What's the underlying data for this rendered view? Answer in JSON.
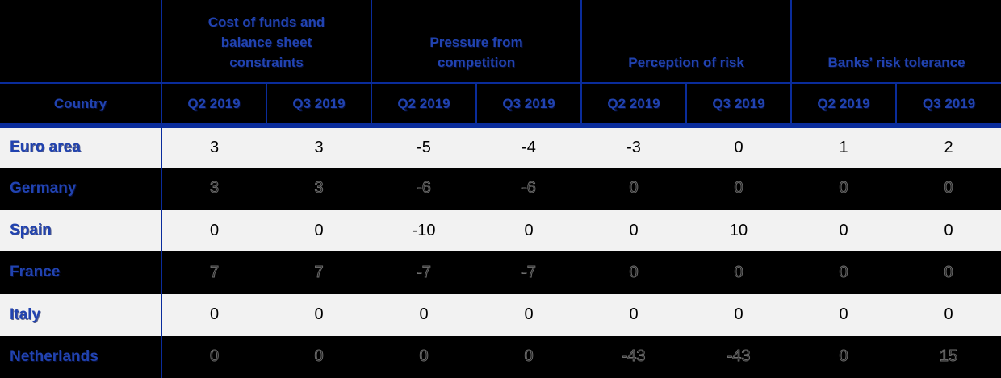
{
  "table": {
    "corner_label": "",
    "country_header": "Country",
    "groups": [
      {
        "label": "Cost of funds and balance sheet constraints"
      },
      {
        "label": "Pressure from competition"
      },
      {
        "label": "Perception of risk"
      },
      {
        "label": "Banks’ risk tolerance"
      }
    ],
    "quarter_headers": [
      "Q2 2019",
      "Q3 2019",
      "Q2 2019",
      "Q3 2019",
      "Q2 2019",
      "Q3 2019",
      "Q2 2019",
      "Q3 2019"
    ],
    "rows": [
      {
        "country": "Euro area",
        "theme": "light",
        "values": [
          3,
          3,
          -5,
          -4,
          -3,
          0,
          1,
          2
        ]
      },
      {
        "country": "Germany",
        "theme": "dark",
        "values": [
          3,
          3,
          -6,
          -6,
          0,
          0,
          0,
          0
        ]
      },
      {
        "country": "Spain",
        "theme": "light",
        "values": [
          0,
          0,
          -10,
          0,
          0,
          10,
          0,
          0
        ]
      },
      {
        "country": "France",
        "theme": "dark",
        "values": [
          7,
          7,
          -7,
          -7,
          0,
          0,
          0,
          0
        ]
      },
      {
        "country": "Italy",
        "theme": "light",
        "values": [
          0,
          0,
          0,
          0,
          0,
          0,
          0,
          0
        ]
      },
      {
        "country": "Netherlands",
        "theme": "dark",
        "values": [
          0,
          0,
          0,
          0,
          -43,
          -43,
          0,
          15
        ]
      }
    ],
    "colors": {
      "grid_line": "#0a2c9b",
      "header_text": "#2143b0",
      "light_row_bg": "#f2f2f2",
      "dark_row_bg": "#000000",
      "light_row_value_text": "#000000",
      "dark_row_value_text": "#161616"
    }
  },
  "chart_data": {
    "type": "table",
    "title": "",
    "column_groups": [
      {
        "label": "Cost of funds and balance sheet constraints",
        "span": 2
      },
      {
        "label": "Pressure from competition",
        "span": 2
      },
      {
        "label": "Perception of risk",
        "span": 2
      },
      {
        "label": "Banks’ risk tolerance",
        "span": 2
      }
    ],
    "columns": [
      "Country",
      "Q2 2019",
      "Q3 2019",
      "Q2 2019",
      "Q3 2019",
      "Q2 2019",
      "Q3 2019",
      "Q2 2019",
      "Q3 2019"
    ],
    "rows": [
      [
        "Euro area",
        3,
        3,
        -5,
        -4,
        -3,
        0,
        1,
        2
      ],
      [
        "Germany",
        3,
        3,
        -6,
        -6,
        0,
        0,
        0,
        0
      ],
      [
        "Spain",
        0,
        0,
        -10,
        0,
        0,
        10,
        0,
        0
      ],
      [
        "France",
        7,
        7,
        -7,
        -7,
        0,
        0,
        0,
        0
      ],
      [
        "Italy",
        0,
        0,
        0,
        0,
        0,
        0,
        0,
        0
      ],
      [
        "Netherlands",
        0,
        0,
        0,
        0,
        -43,
        -43,
        0,
        15
      ]
    ]
  }
}
